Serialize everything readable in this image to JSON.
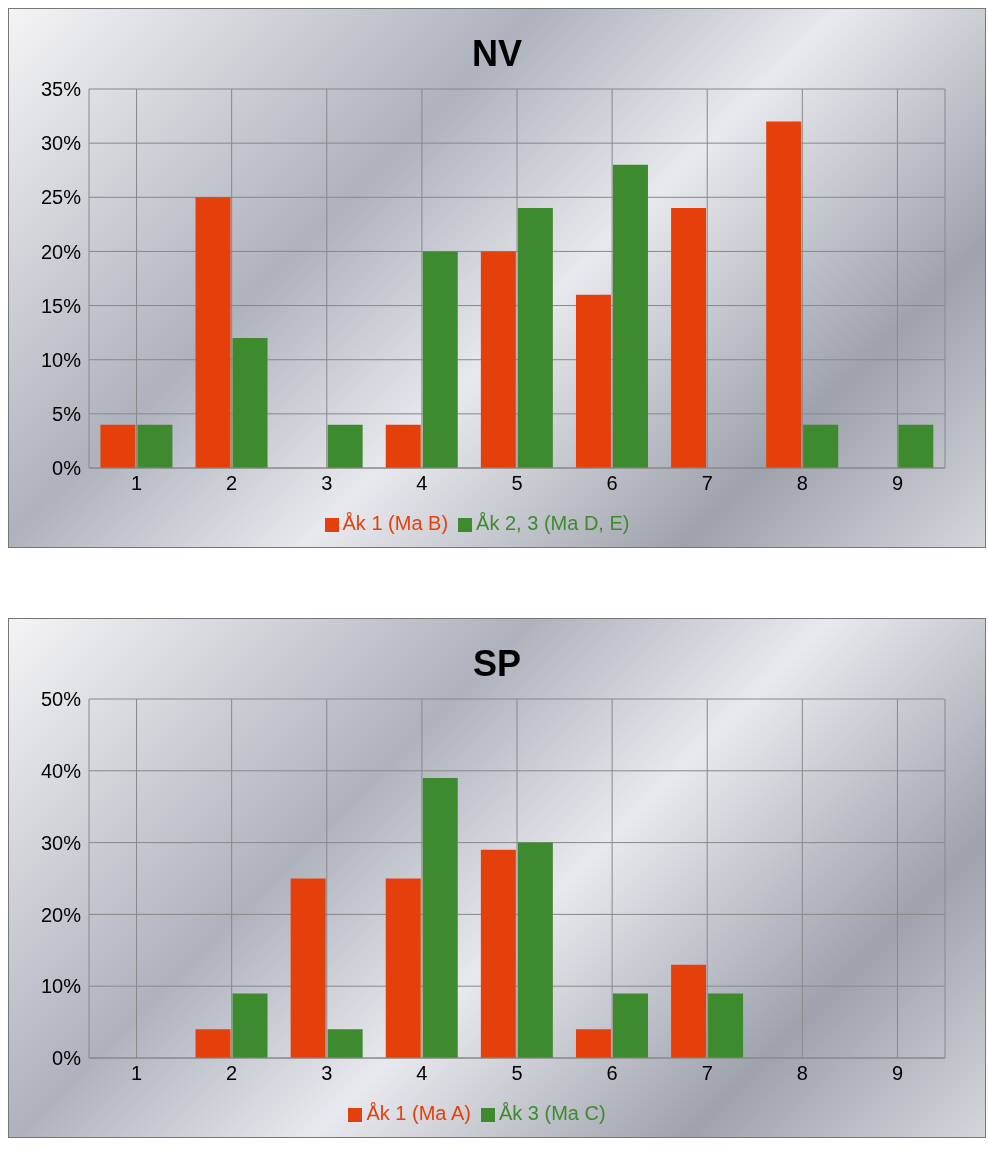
{
  "chart_data": [
    {
      "type": "bar",
      "title": "NV",
      "categories": [
        "1",
        "2",
        "3",
        "4",
        "5",
        "6",
        "7",
        "8",
        "9"
      ],
      "series": [
        {
          "name": "Åk 1 (Ma B)",
          "color": "#e5400c",
          "values": [
            4,
            25,
            0,
            4,
            20,
            16,
            24,
            32,
            0
          ]
        },
        {
          "name": "Åk 2, 3 (Ma D, E)",
          "color": "#3d8b2e",
          "values": [
            4,
            12,
            4,
            20,
            24,
            28,
            0,
            4,
            4
          ]
        }
      ],
      "ylim": [
        0,
        35
      ],
      "yticks": [
        {
          "value": 0,
          "label": "0%"
        },
        {
          "value": 5,
          "label": "5%"
        },
        {
          "value": 10,
          "label": "10%"
        },
        {
          "value": 15,
          "label": "15%"
        },
        {
          "value": 20,
          "label": "20%"
        },
        {
          "value": 25,
          "label": "25%"
        },
        {
          "value": 30,
          "label": "30%"
        },
        {
          "value": 35,
          "label": "35%"
        }
      ],
      "grid": true,
      "legend": "bottom"
    },
    {
      "type": "bar",
      "title": "SP",
      "categories": [
        "1",
        "2",
        "3",
        "4",
        "5",
        "6",
        "7",
        "8",
        "9"
      ],
      "series": [
        {
          "name": "Åk 1 (Ma A)",
          "color": "#e5400c",
          "values": [
            0,
            4,
            25,
            25,
            29,
            4,
            13,
            0,
            0
          ]
        },
        {
          "name": "Åk 3 (Ma C)",
          "color": "#3d8b2e",
          "values": [
            0,
            9,
            4,
            39,
            30,
            9,
            9,
            0,
            0
          ]
        }
      ],
      "ylim": [
        0,
        50
      ],
      "yticks": [
        {
          "value": 0,
          "label": "0%"
        },
        {
          "value": 10,
          "label": "10%"
        },
        {
          "value": 20,
          "label": "20%"
        },
        {
          "value": 30,
          "label": "30%"
        },
        {
          "value": 40,
          "label": "40%"
        },
        {
          "value": 50,
          "label": "50%"
        }
      ],
      "grid": true,
      "legend": "bottom"
    }
  ]
}
